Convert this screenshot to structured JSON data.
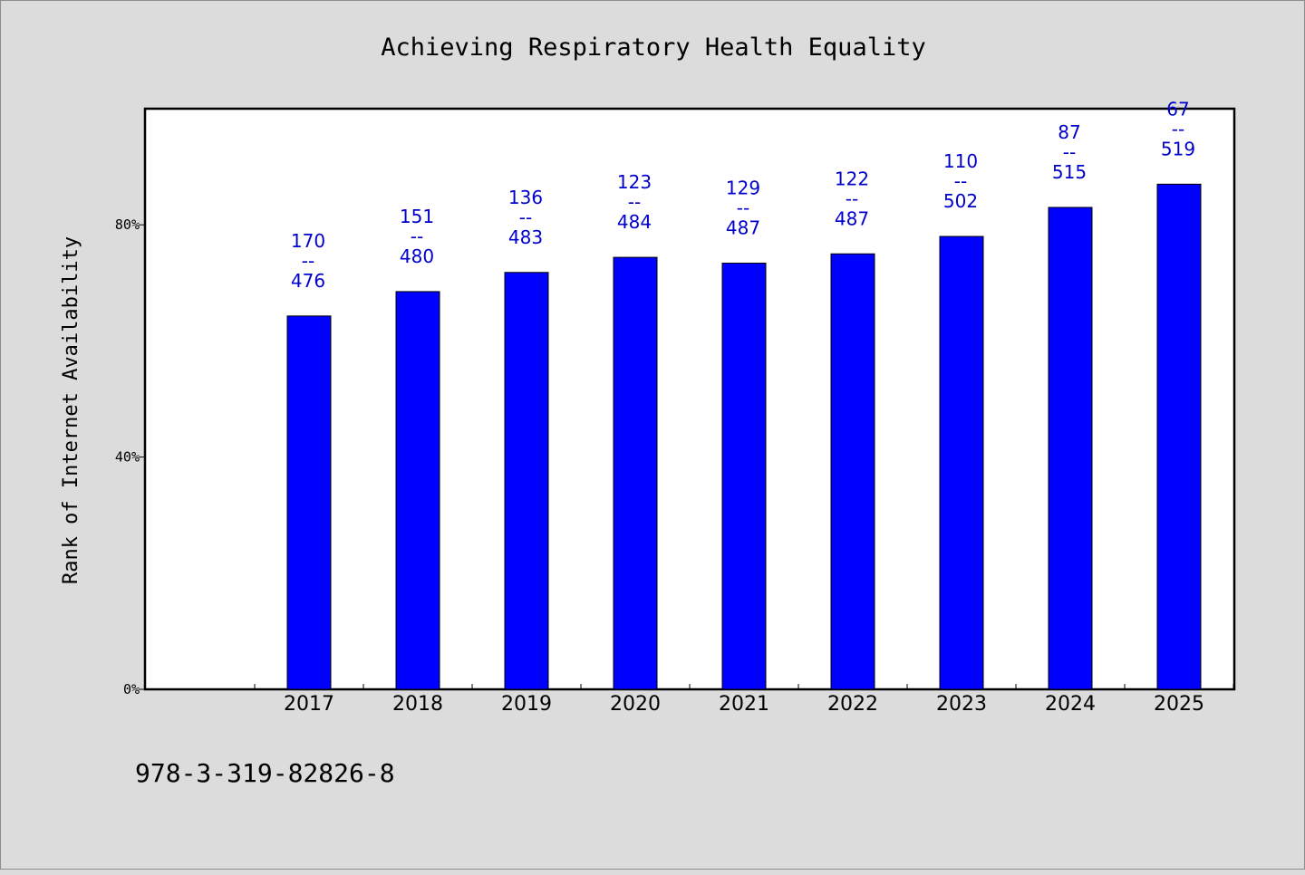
{
  "chart_data": {
    "type": "bar",
    "title": "Achieving Respiratory Health Equality",
    "xlabel": "",
    "ylabel": "Rank of Internet Availability",
    "categories": [
      "2017",
      "2018",
      "2019",
      "2020",
      "2021",
      "2022",
      "2023",
      "2024",
      "2025"
    ],
    "values": [
      64.3,
      68.5,
      71.8,
      74.4,
      73.4,
      75.0,
      78.0,
      83.0,
      87.0
    ],
    "data_labels": [
      [
        "170",
        "--",
        "476"
      ],
      [
        "151",
        "--",
        "480"
      ],
      [
        "136",
        "--",
        "483"
      ],
      [
        "123",
        "--",
        "484"
      ],
      [
        "129",
        "--",
        "487"
      ],
      [
        "122",
        "--",
        "487"
      ],
      [
        "110",
        "--",
        "502"
      ],
      [
        "87",
        "--",
        "515"
      ],
      [
        "67",
        "--",
        "519"
      ]
    ],
    "ylim": [
      0,
      100
    ],
    "y_ticks": [
      0,
      40,
      80
    ],
    "y_tick_labels": [
      "0%",
      "40%",
      "80%"
    ],
    "bar_color": "#0000ff",
    "label_color": "#0000cc",
    "grid": false,
    "legend": "none"
  },
  "footer": {
    "isbn": "978-3-319-82826-8"
  }
}
